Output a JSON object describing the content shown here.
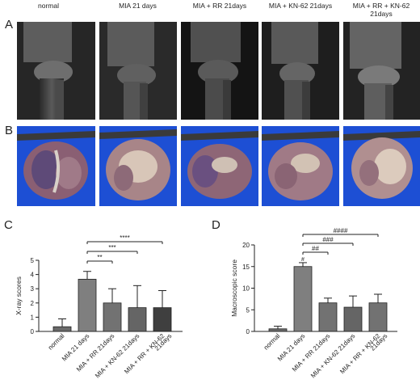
{
  "figure": {
    "panel_labels": {
      "A": "A",
      "B": "B",
      "C": "C",
      "D": "D"
    },
    "columns": [
      {
        "title": "normal"
      },
      {
        "title": "MIA 21 days"
      },
      {
        "title": "MIA + RR 21days"
      },
      {
        "title": "MIA + KN-62 21days"
      },
      {
        "title": "MIA + RR + KN-62\n21days"
      }
    ]
  },
  "chart_data": [
    {
      "type": "bar",
      "panel": "C",
      "ylabel": "X-ray scores",
      "ylim": [
        0,
        5
      ],
      "yticks": [
        0,
        1,
        2,
        3,
        4,
        5
      ],
      "categories": [
        "normal",
        "MIA 21 days",
        "MIA + RR 21days",
        "MIA + KN-62 21days",
        "MIA + RR + KN-62\n21days"
      ],
      "values": [
        0.33,
        3.67,
        2.0,
        1.67,
        1.67
      ],
      "errors": [
        0.55,
        0.55,
        1.0,
        1.55,
        1.2
      ],
      "bar_colors": [
        "#6a6a6a",
        "#7f7f7f",
        "#727272",
        "#656565",
        "#3f3f3f"
      ],
      "comparisons": [
        {
          "label": "**",
          "from": 1,
          "to": 2,
          "level": 1
        },
        {
          "label": "***",
          "from": 1,
          "to": 3,
          "level": 2
        },
        {
          "label": "****",
          "from": 1,
          "to": 4,
          "level": 3
        }
      ]
    },
    {
      "type": "bar",
      "panel": "D",
      "ylabel": "Macroscopic score",
      "ylim": [
        0,
        20
      ],
      "yticks": [
        0,
        5,
        10,
        15,
        20
      ],
      "categories": [
        "normal",
        "MIA 21 days",
        "MIA + RR 21days",
        "MIA + KN-62 21days",
        "MIA + RR + KN-62\n21days"
      ],
      "values": [
        0.6,
        15.0,
        6.6,
        5.6,
        6.6
      ],
      "errors": [
        0.6,
        0.9,
        1.1,
        2.6,
        2.0
      ],
      "bar_colors": [
        "#6a6a6a",
        "#7f7f7f",
        "#727272",
        "#656565",
        "#727272"
      ],
      "comparisons": [
        {
          "label": "#",
          "from": 1,
          "to": 1,
          "level": 0
        },
        {
          "label": "##",
          "from": 1,
          "to": 2,
          "level": 1
        },
        {
          "label": "###",
          "from": 1,
          "to": 3,
          "level": 2
        },
        {
          "label": "####",
          "from": 1,
          "to": 4,
          "level": 3
        }
      ]
    }
  ]
}
